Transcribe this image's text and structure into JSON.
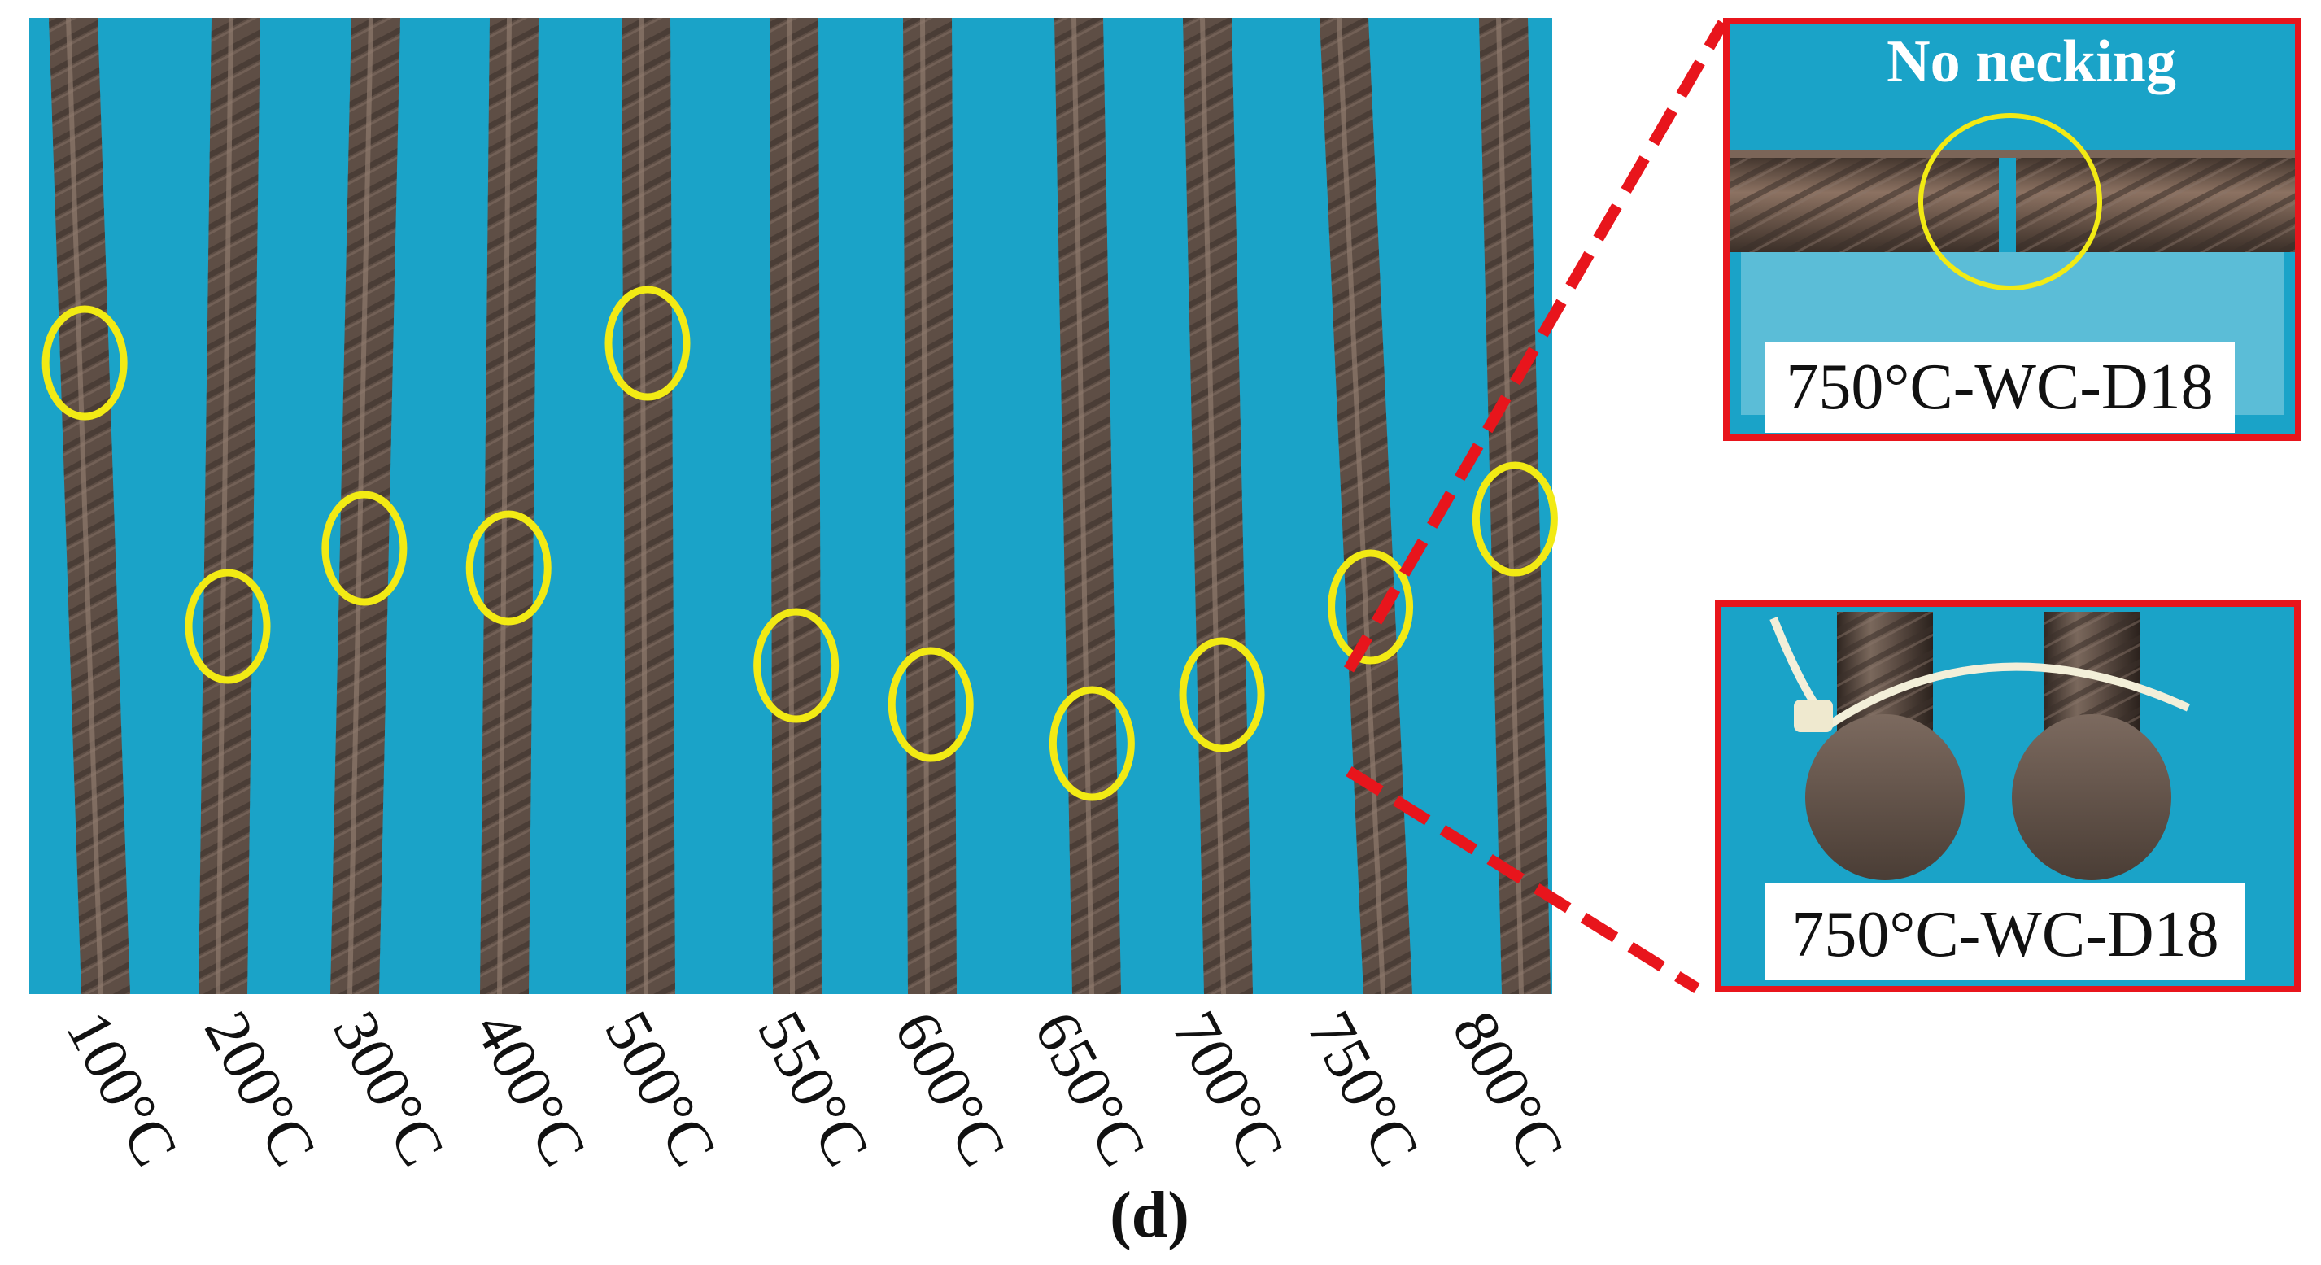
{
  "colors": {
    "background_panel": "#1aa3c8",
    "rebar": "#5e4e45",
    "fracture_marker": "#f2ea14",
    "inset_border": "#e8151c",
    "leader_line": "#e8151c"
  },
  "specimens": [
    {
      "temperature": "100°C",
      "fracture_position": 0.47
    },
    {
      "temperature": "200°C",
      "fracture_position": 0.74
    },
    {
      "temperature": "300°C",
      "fracture_position": 0.66
    },
    {
      "temperature": "400°C",
      "fracture_position": 0.68
    },
    {
      "temperature": "500°C",
      "fracture_position": 0.45
    },
    {
      "temperature": "550°C",
      "fracture_position": 0.78
    },
    {
      "temperature": "600°C",
      "fracture_position": 0.82
    },
    {
      "temperature": "650°C",
      "fracture_position": 0.86
    },
    {
      "temperature": "700°C",
      "fracture_position": 0.81
    },
    {
      "temperature": "750°C",
      "fracture_position": 0.72
    },
    {
      "temperature": "800°C",
      "fracture_position": 0.63
    }
  ],
  "inset_top": {
    "annotation": "No necking",
    "label": "750°C-WC-D18"
  },
  "inset_bottom": {
    "label": "750°C-WC-D18"
  },
  "caption": "(d)"
}
